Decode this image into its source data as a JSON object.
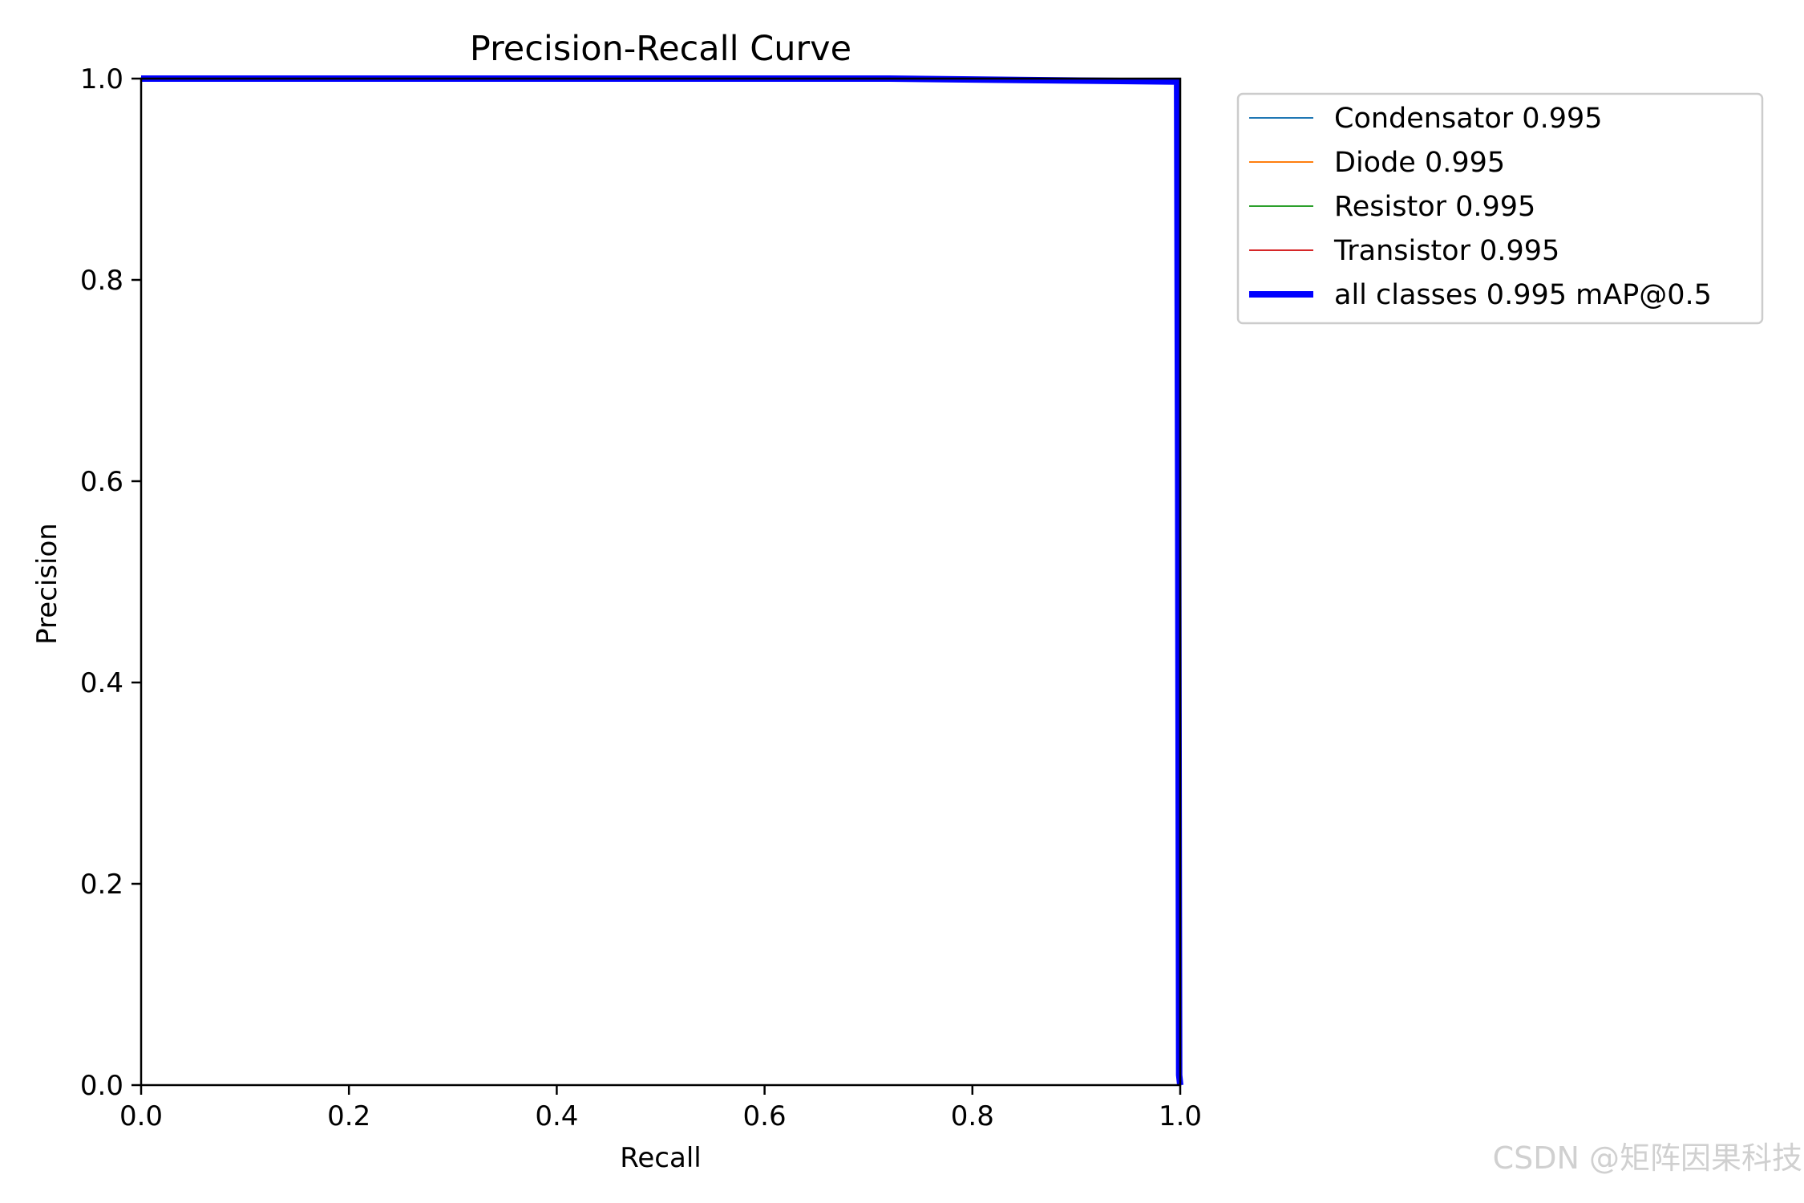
{
  "chart_data": {
    "type": "line",
    "title": "Precision-Recall Curve",
    "xlabel": "Recall",
    "ylabel": "Precision",
    "xlim": [
      0.0,
      1.0
    ],
    "ylim": [
      0.0,
      1.0
    ],
    "x_ticks": [
      "0.0",
      "0.2",
      "0.4",
      "0.6",
      "0.8",
      "1.0"
    ],
    "y_ticks": [
      "0.0",
      "0.2",
      "0.4",
      "0.6",
      "0.8",
      "1.0"
    ],
    "grid": false,
    "legend_position": "outside-right",
    "series": [
      {
        "name": "Condensator 0.995",
        "color": "#1f77b4",
        "width": "thin",
        "x": [
          0.0,
          0.72,
          0.997,
          0.998,
          0.999,
          1.0
        ],
        "y": [
          1.0,
          1.0,
          0.997,
          0.6,
          0.01,
          0.0
        ]
      },
      {
        "name": "Diode 0.995",
        "color": "#ff7f0e",
        "width": "thin",
        "x": [
          0.0,
          0.72,
          0.997,
          0.998,
          0.999,
          1.0
        ],
        "y": [
          1.0,
          1.0,
          0.997,
          0.6,
          0.01,
          0.0
        ]
      },
      {
        "name": "Resistor 0.995",
        "color": "#2ca02c",
        "width": "thin",
        "x": [
          0.0,
          0.72,
          0.997,
          0.998,
          0.999,
          1.0
        ],
        "y": [
          1.0,
          1.0,
          0.997,
          0.6,
          0.01,
          0.0
        ]
      },
      {
        "name": "Transistor 0.995",
        "color": "#d62728",
        "width": "thin",
        "x": [
          0.0,
          0.72,
          0.997,
          0.998,
          0.999,
          1.0
        ],
        "y": [
          1.0,
          1.0,
          0.997,
          0.6,
          0.01,
          0.0
        ]
      },
      {
        "name": "all classes 0.995 mAP@0.5",
        "color": "#0000ff",
        "width": "thick",
        "x": [
          0.0,
          0.72,
          0.997,
          0.998,
          0.999,
          1.0
        ],
        "y": [
          1.0,
          1.0,
          0.997,
          0.6,
          0.01,
          0.0
        ]
      }
    ]
  },
  "watermark": "CSDN @矩阵因果科技"
}
